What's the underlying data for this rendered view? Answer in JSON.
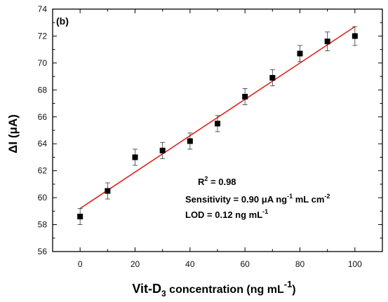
{
  "chart_data": {
    "type": "scatter",
    "panel_label": "(b)",
    "xlabel": {
      "main": "Vit-D",
      "sub": "3",
      "rest": " concentration (ng mL",
      "sup": "-1",
      "close": ")"
    },
    "ylabel": "ΔI (μA)",
    "xlim": [
      -10,
      110
    ],
    "ylim": [
      56,
      74
    ],
    "x_ticks": [
      0,
      20,
      40,
      60,
      80,
      100
    ],
    "y_ticks": [
      56,
      58,
      60,
      62,
      64,
      66,
      68,
      70,
      72,
      74
    ],
    "grid": false,
    "series": [
      {
        "marker": "square",
        "color": "#000000",
        "x": [
          0,
          10,
          20,
          30,
          40,
          50,
          60,
          70,
          80,
          90,
          100
        ],
        "y": [
          58.6,
          60.5,
          63.0,
          63.5,
          64.2,
          65.5,
          67.5,
          68.9,
          70.7,
          71.6,
          72.0
        ],
        "yerr": [
          0.6,
          0.6,
          0.6,
          0.6,
          0.6,
          0.6,
          0.6,
          0.6,
          0.6,
          0.7,
          0.7
        ]
      }
    ],
    "fit": {
      "color": "#e0201b",
      "x": [
        0,
        100
      ],
      "y": [
        59.2,
        72.7
      ]
    },
    "annotations": {
      "r2": {
        "main": "R",
        "sup": "2",
        "rest": " = 0.98"
      },
      "sensitivity": {
        "main": "Sensitivity = 0.90 μA ng",
        "sup1": "-1",
        "mid": " mL cm",
        "sup2": "-2"
      },
      "lod": {
        "main": "LOD = 0.12 ng mL",
        "sup": "-1"
      }
    }
  }
}
